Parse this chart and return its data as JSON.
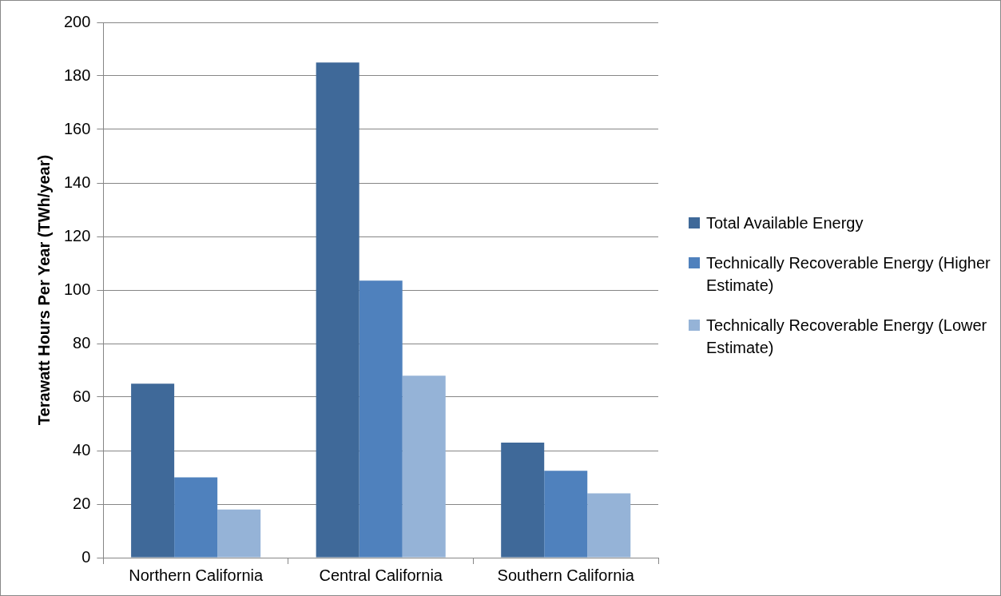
{
  "chart_data": {
    "type": "bar",
    "ylabel": "Terawatt Hours Per Year (TWh/year)",
    "categories": [
      "Northern California",
      "Central California",
      "Southern California"
    ],
    "series": [
      {
        "name": "Total Available Energy",
        "color": "#3f6999",
        "values": [
          65,
          185,
          43
        ]
      },
      {
        "name": "Technically Recoverable Energy (Higher Estimate)",
        "color": "#4f81bd",
        "values": [
          30,
          103.5,
          32.5
        ]
      },
      {
        "name": "Technically Recoverable Energy (Lower Estimate)",
        "color": "#95b3d7",
        "values": [
          18,
          68,
          24
        ]
      }
    ],
    "ylim": [
      0,
      200
    ],
    "yticks": [
      0,
      20,
      40,
      60,
      80,
      100,
      120,
      140,
      160,
      180,
      200
    ],
    "grid": "y",
    "legend": "right"
  }
}
